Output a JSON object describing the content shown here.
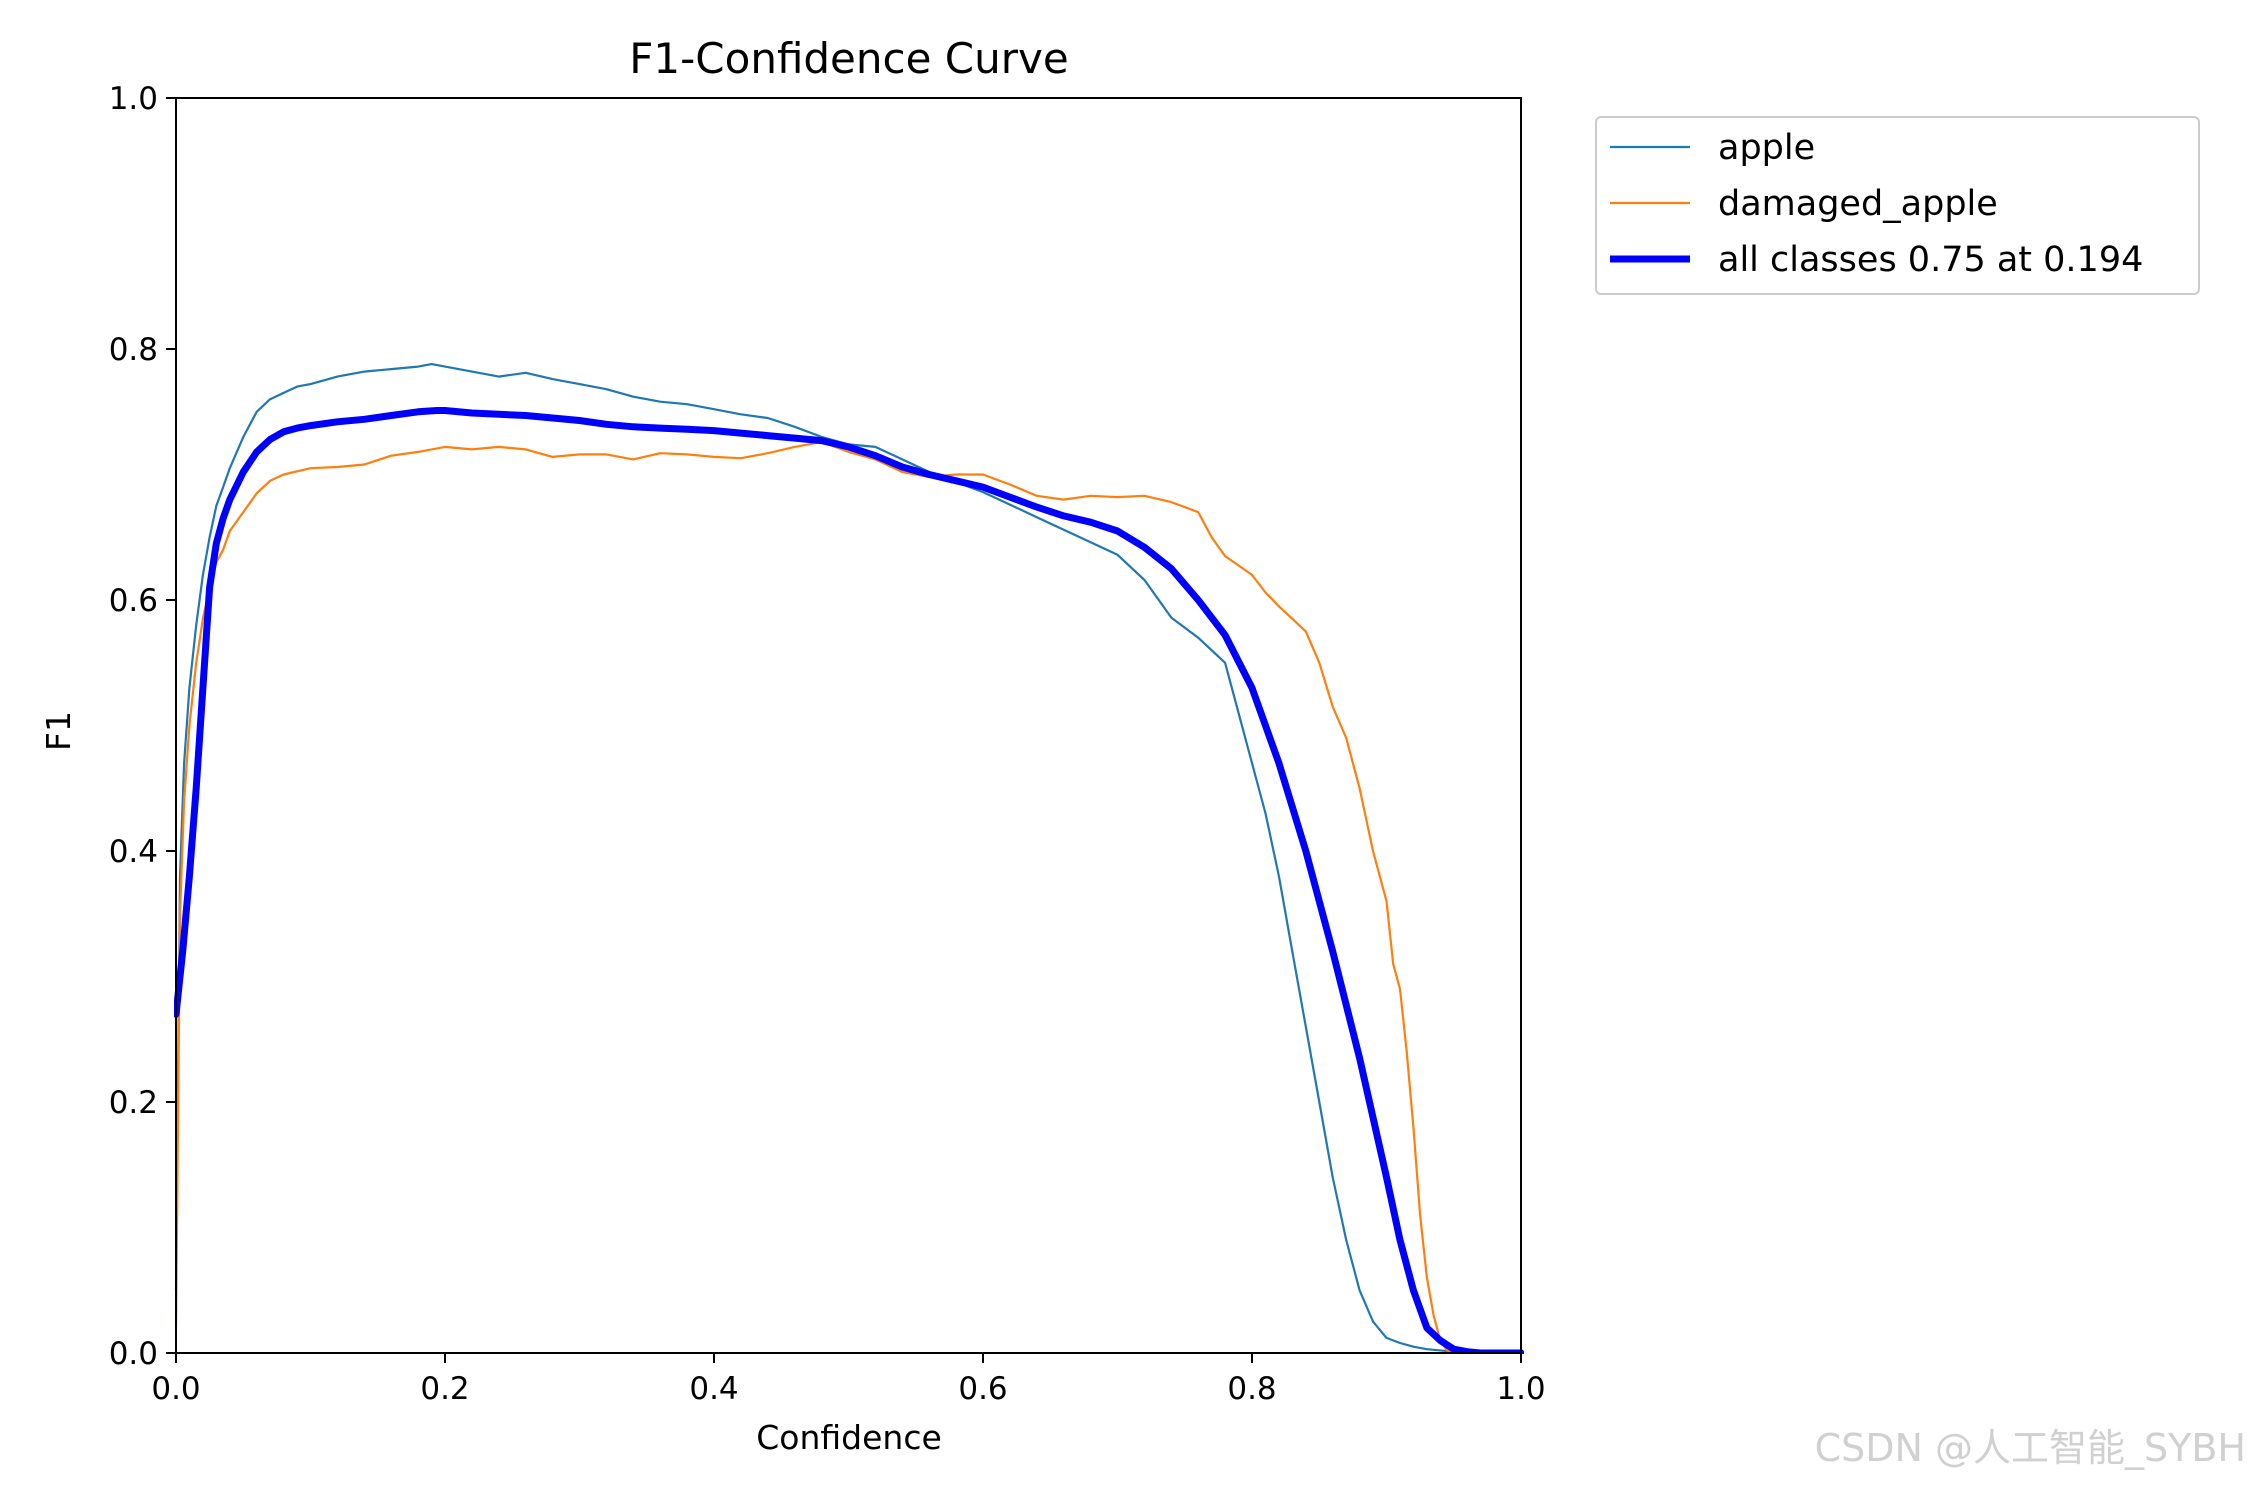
{
  "chart_data": {
    "type": "line",
    "title": "F1-Confidence Curve",
    "xlabel": "Confidence",
    "ylabel": "F1",
    "xlim": [
      0.0,
      1.0
    ],
    "ylim": [
      0.0,
      1.0
    ],
    "xticks": [
      "0.0",
      "0.2",
      "0.4",
      "0.6",
      "0.8",
      "1.0"
    ],
    "yticks": [
      "0.0",
      "0.2",
      "0.4",
      "0.6",
      "0.8",
      "1.0"
    ],
    "grid": false,
    "legend_position": "outside-top-right",
    "series": [
      {
        "name": "apple",
        "color": "#1f77b4",
        "x": [
          0.0,
          0.003,
          0.006,
          0.01,
          0.015,
          0.02,
          0.025,
          0.03,
          0.035,
          0.04,
          0.05,
          0.06,
          0.07,
          0.08,
          0.09,
          0.1,
          0.12,
          0.14,
          0.16,
          0.18,
          0.19,
          0.2,
          0.22,
          0.24,
          0.26,
          0.28,
          0.3,
          0.32,
          0.34,
          0.36,
          0.38,
          0.4,
          0.42,
          0.44,
          0.46,
          0.48,
          0.5,
          0.52,
          0.54,
          0.56,
          0.58,
          0.6,
          0.62,
          0.64,
          0.66,
          0.68,
          0.7,
          0.72,
          0.74,
          0.76,
          0.78,
          0.8,
          0.81,
          0.82,
          0.83,
          0.84,
          0.85,
          0.86,
          0.87,
          0.88,
          0.89,
          0.9,
          0.91,
          0.92,
          0.93,
          0.95,
          0.97,
          1.0
        ],
        "y": [
          0.05,
          0.38,
          0.47,
          0.53,
          0.58,
          0.62,
          0.65,
          0.675,
          0.69,
          0.705,
          0.73,
          0.75,
          0.76,
          0.765,
          0.77,
          0.772,
          0.778,
          0.782,
          0.784,
          0.786,
          0.788,
          0.786,
          0.782,
          0.778,
          0.781,
          0.776,
          0.772,
          0.768,
          0.762,
          0.758,
          0.756,
          0.752,
          0.748,
          0.745,
          0.738,
          0.73,
          0.724,
          0.722,
          0.712,
          0.702,
          0.694,
          0.686,
          0.676,
          0.666,
          0.656,
          0.646,
          0.636,
          0.616,
          0.586,
          0.57,
          0.55,
          0.47,
          0.43,
          0.38,
          0.32,
          0.26,
          0.2,
          0.14,
          0.09,
          0.05,
          0.025,
          0.012,
          0.008,
          0.005,
          0.003,
          0.001,
          0.0,
          0.0
        ]
      },
      {
        "name": "damaged_apple",
        "color": "#ff7f0e",
        "x": [
          0.0,
          0.003,
          0.006,
          0.01,
          0.015,
          0.02,
          0.025,
          0.03,
          0.035,
          0.04,
          0.05,
          0.06,
          0.07,
          0.08,
          0.1,
          0.12,
          0.14,
          0.16,
          0.18,
          0.2,
          0.22,
          0.24,
          0.26,
          0.28,
          0.3,
          0.32,
          0.34,
          0.36,
          0.38,
          0.4,
          0.42,
          0.44,
          0.46,
          0.48,
          0.5,
          0.52,
          0.54,
          0.56,
          0.58,
          0.6,
          0.62,
          0.64,
          0.66,
          0.68,
          0.7,
          0.72,
          0.74,
          0.76,
          0.77,
          0.78,
          0.8,
          0.81,
          0.82,
          0.83,
          0.84,
          0.85,
          0.86,
          0.87,
          0.88,
          0.89,
          0.9,
          0.905,
          0.91,
          0.915,
          0.92,
          0.925,
          0.93,
          0.935,
          0.94,
          0.945,
          0.95,
          1.0
        ],
        "y": [
          0.02,
          0.35,
          0.44,
          0.5,
          0.55,
          0.585,
          0.61,
          0.63,
          0.64,
          0.655,
          0.67,
          0.685,
          0.695,
          0.7,
          0.705,
          0.706,
          0.708,
          0.715,
          0.718,
          0.722,
          0.72,
          0.722,
          0.72,
          0.714,
          0.716,
          0.716,
          0.712,
          0.717,
          0.716,
          0.714,
          0.713,
          0.717,
          0.722,
          0.726,
          0.718,
          0.712,
          0.702,
          0.698,
          0.7,
          0.7,
          0.692,
          0.683,
          0.68,
          0.683,
          0.682,
          0.683,
          0.678,
          0.67,
          0.65,
          0.635,
          0.62,
          0.606,
          0.595,
          0.585,
          0.575,
          0.55,
          0.515,
          0.49,
          0.45,
          0.4,
          0.36,
          0.31,
          0.29,
          0.24,
          0.18,
          0.11,
          0.06,
          0.03,
          0.01,
          0.002,
          0.0,
          0.0
        ]
      },
      {
        "name": "all classes 0.75 at 0.194",
        "color": "#0000ff",
        "x": [
          0.0,
          0.005,
          0.01,
          0.015,
          0.02,
          0.025,
          0.03,
          0.035,
          0.04,
          0.05,
          0.06,
          0.07,
          0.08,
          0.09,
          0.1,
          0.12,
          0.14,
          0.16,
          0.18,
          0.194,
          0.2,
          0.22,
          0.24,
          0.26,
          0.28,
          0.3,
          0.32,
          0.34,
          0.36,
          0.38,
          0.4,
          0.42,
          0.44,
          0.46,
          0.48,
          0.5,
          0.52,
          0.54,
          0.56,
          0.58,
          0.6,
          0.62,
          0.64,
          0.66,
          0.68,
          0.7,
          0.72,
          0.74,
          0.76,
          0.78,
          0.8,
          0.82,
          0.84,
          0.86,
          0.88,
          0.9,
          0.91,
          0.92,
          0.93,
          0.94,
          0.95,
          0.96,
          0.97,
          0.98,
          1.0
        ],
        "y": [
          0.27,
          0.32,
          0.38,
          0.45,
          0.53,
          0.61,
          0.645,
          0.665,
          0.68,
          0.702,
          0.718,
          0.728,
          0.734,
          0.737,
          0.739,
          0.742,
          0.744,
          0.747,
          0.75,
          0.751,
          0.751,
          0.749,
          0.748,
          0.747,
          0.745,
          0.743,
          0.74,
          0.738,
          0.737,
          0.736,
          0.735,
          0.733,
          0.731,
          0.729,
          0.727,
          0.722,
          0.715,
          0.706,
          0.7,
          0.695,
          0.69,
          0.682,
          0.674,
          0.667,
          0.662,
          0.655,
          0.642,
          0.625,
          0.6,
          0.572,
          0.53,
          0.47,
          0.4,
          0.32,
          0.235,
          0.14,
          0.09,
          0.05,
          0.02,
          0.01,
          0.003,
          0.001,
          0.0,
          0.0,
          0.0
        ]
      }
    ]
  },
  "watermark": "CSDN @人工智能_SYBH"
}
